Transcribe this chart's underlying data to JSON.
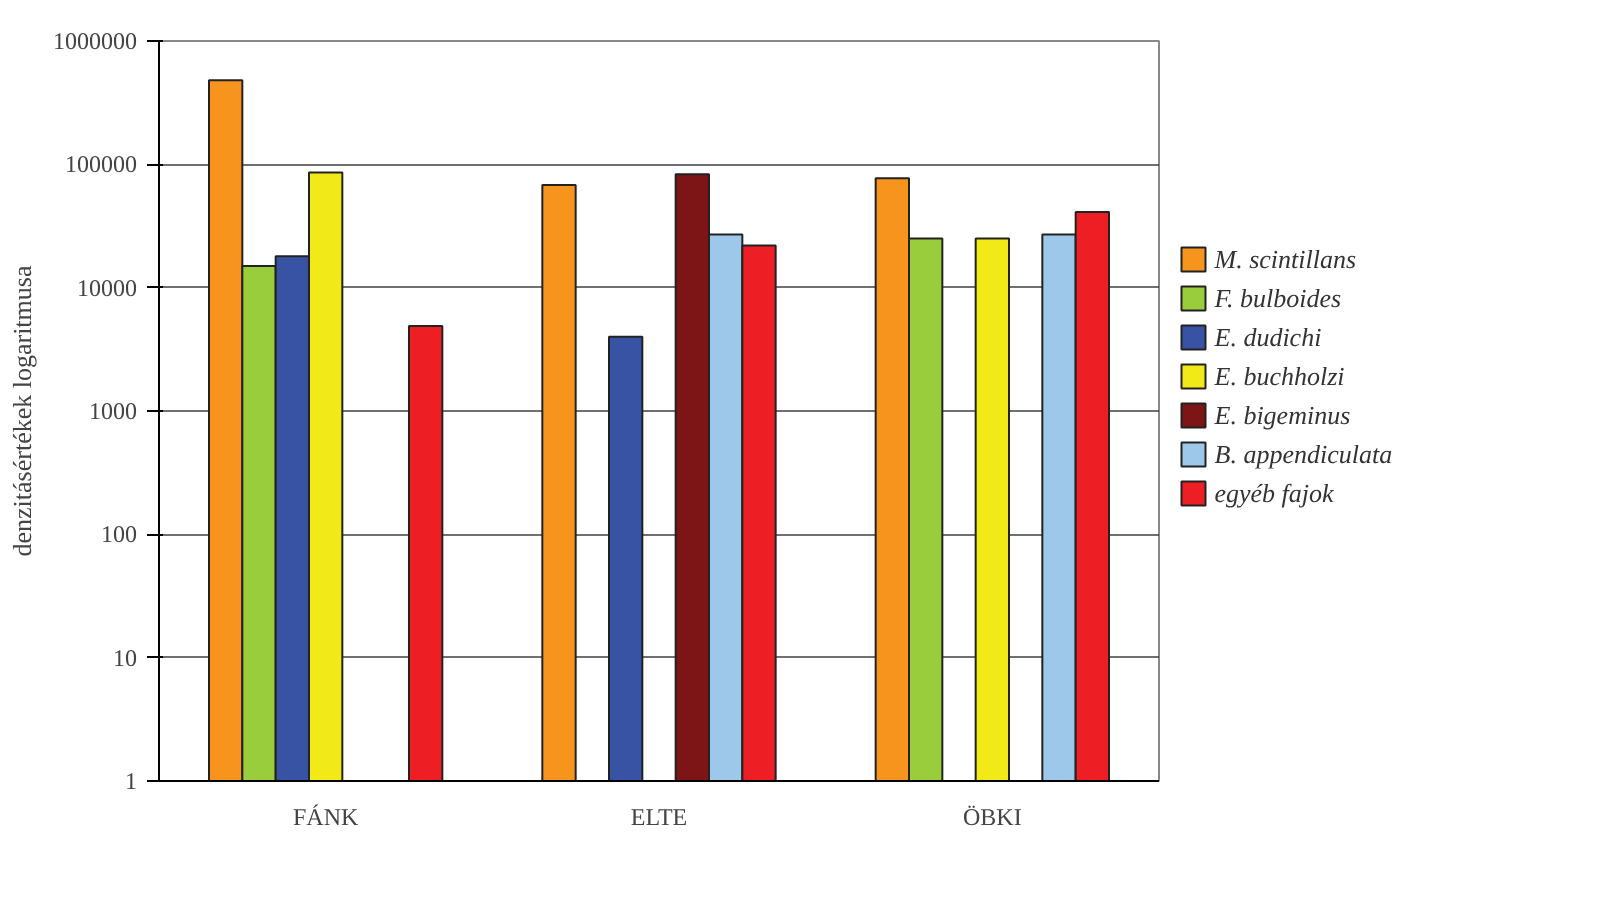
{
  "chart_data": {
    "type": "bar",
    "ylabel": "denzitásértékek logaritmusa",
    "categories": [
      "FÁNK",
      "ELTE",
      "ÖBKI"
    ],
    "series": [
      {
        "name": "M. scintillans",
        "color": "#f7941d",
        "values": [
          480000,
          68000,
          77000
        ]
      },
      {
        "name": "F. bulboides",
        "color": "#9acd3c",
        "values": [
          15000,
          null,
          25000
        ]
      },
      {
        "name": "E. dudichi",
        "color": "#3953a4",
        "values": [
          18000,
          4000,
          null
        ]
      },
      {
        "name": "E. buchholzi",
        "color": "#f2ea18",
        "values": [
          86000,
          null,
          25000
        ]
      },
      {
        "name": "E. bigeminus",
        "color": "#7d1416",
        "values": [
          null,
          83000,
          null
        ]
      },
      {
        "name": "B. appendiculata",
        "color": "#9ec8ea",
        "values": [
          null,
          27000,
          27000
        ]
      },
      {
        "name": "egyéb fajok",
        "color": "#ed1f24",
        "values": [
          4900,
          22000,
          41000
        ]
      }
    ],
    "log": true,
    "ylim": [
      1,
      1000000
    ],
    "yticks": [
      1,
      10,
      100,
      1000,
      10000,
      100000,
      1000000
    ],
    "grid": "y",
    "legend": "right"
  }
}
